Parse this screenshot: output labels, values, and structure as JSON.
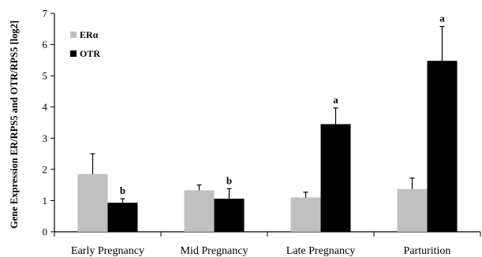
{
  "chart_data": {
    "type": "bar",
    "ylabel": "Gene Expression ER/RPS5 and OTR/RPS5 [log2]",
    "xlabel": "",
    "title": "",
    "ylim": [
      0,
      7
    ],
    "yticks": [
      "0",
      "1",
      "2",
      "3",
      "4",
      "5",
      "6",
      "7"
    ],
    "categories": [
      "Early Pregnancy",
      "Mid Pregnancy",
      "Late Pregnancy",
      "Parturition"
    ],
    "legend_position": "top-left",
    "grid": false,
    "series": [
      {
        "name": "ERα",
        "color": "#c0c0c0",
        "values": [
          1.85,
          1.33,
          1.1,
          1.37
        ],
        "errors": [
          0.65,
          0.17,
          0.17,
          0.35
        ],
        "annotations": [
          "",
          "",
          "",
          ""
        ]
      },
      {
        "name": "OTR",
        "color": "#000000",
        "values": [
          0.93,
          1.06,
          3.45,
          5.48
        ],
        "errors": [
          0.13,
          0.32,
          0.52,
          1.1
        ],
        "annotations": [
          "b",
          "b",
          "a",
          "a"
        ]
      }
    ]
  }
}
